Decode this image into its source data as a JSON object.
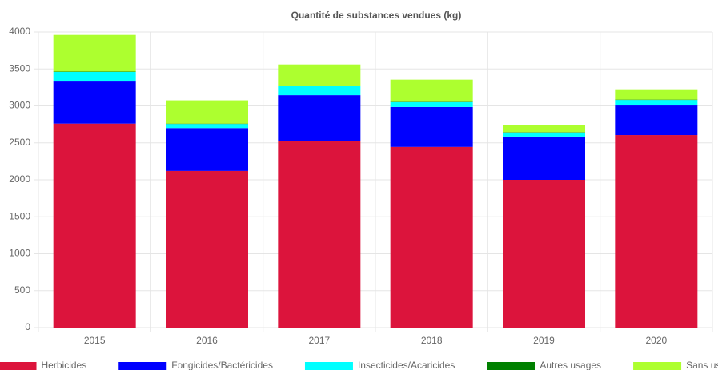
{
  "chart_data": {
    "type": "stacked_bar",
    "title": "Quantité de substances vendues (kg)",
    "categories": [
      "2015",
      "2016",
      "2017",
      "2018",
      "2019",
      "2020"
    ],
    "series": [
      {
        "name": "Herbicides",
        "color": "#dc143c",
        "values": [
          2760,
          2120,
          2520,
          2445,
          2000,
          2605
        ]
      },
      {
        "name": "Fongicides/Bactéricides",
        "color": "#0000ff",
        "values": [
          580,
          580,
          625,
          540,
          585,
          400
        ]
      },
      {
        "name": "Insecticides/Acaricides",
        "color": "#00ffff",
        "values": [
          120,
          55,
          120,
          65,
          55,
          75
        ]
      },
      {
        "name": "Autres usages",
        "color": "#008000",
        "values": [
          5,
          5,
          5,
          5,
          5,
          5
        ]
      },
      {
        "name": "Sans usage défini",
        "color": "#adff2f",
        "values": [
          495,
          315,
          290,
          300,
          95,
          140
        ]
      }
    ],
    "ylim": [
      0,
      4000
    ],
    "yticks": [
      0,
      500,
      1000,
      1500,
      2000,
      2500,
      3000,
      3500,
      4000
    ],
    "grid": true
  }
}
